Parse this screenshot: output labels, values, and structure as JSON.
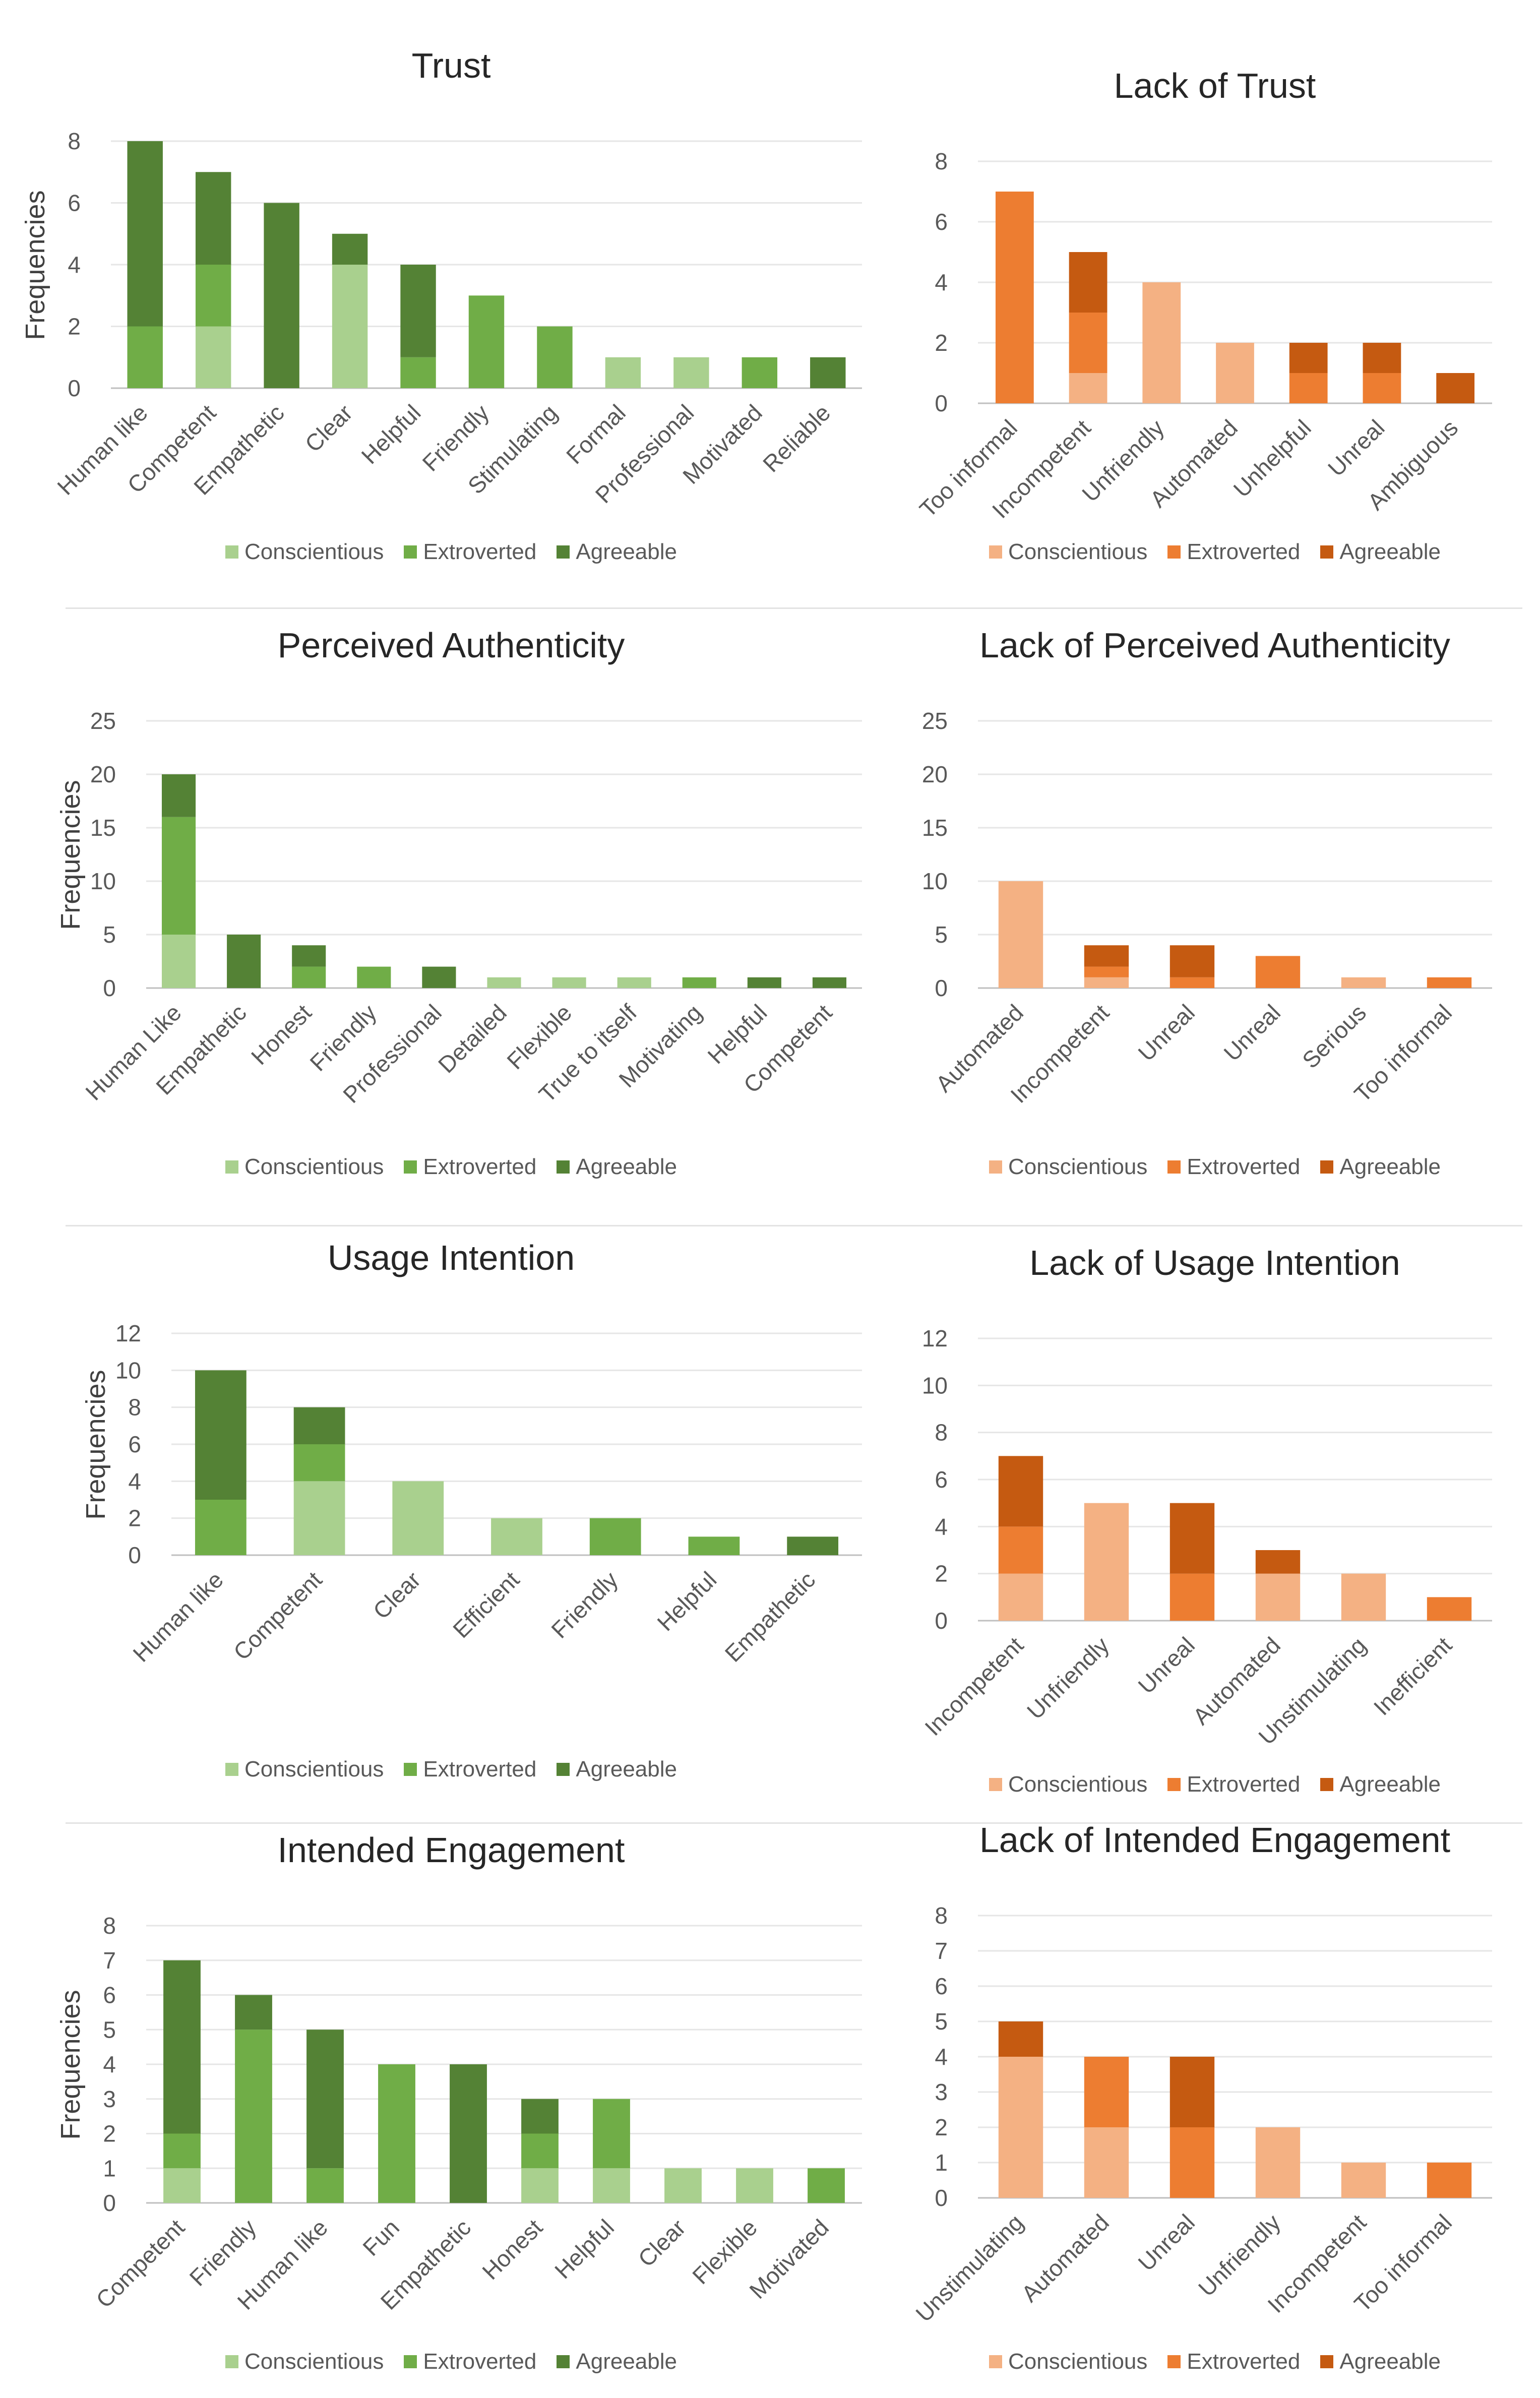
{
  "chart_data": [
    {
      "type": "bar",
      "stacked": true,
      "title": "Trust",
      "ylabel": "Frequencies",
      "ylim": [
        0,
        8
      ],
      "yticks": [
        0,
        2,
        4,
        6,
        8
      ],
      "categories": [
        "Human like",
        "Competent",
        "Empathetic",
        "Clear",
        "Helpful",
        "Friendly",
        "Stimulating",
        "Formal",
        "Professional",
        "Motivated",
        "Reliable"
      ],
      "series": [
        {
          "name": "Conscientious",
          "color": "#a9d08e",
          "values": [
            0,
            2,
            0,
            4,
            0,
            0,
            0,
            1,
            1,
            0,
            0
          ]
        },
        {
          "name": "Extroverted",
          "color": "#70ad47",
          "values": [
            2,
            2,
            0,
            0,
            1,
            3,
            2,
            0,
            0,
            1,
            0
          ]
        },
        {
          "name": "Agreeable",
          "color": "#548235",
          "values": [
            6,
            3,
            6,
            1,
            3,
            0,
            0,
            0,
            0,
            0,
            1
          ]
        }
      ],
      "legend_position": "bottom",
      "grid": true
    },
    {
      "type": "bar",
      "stacked": true,
      "title": "Lack of Trust",
      "ylabel": "",
      "ylim": [
        0,
        8
      ],
      "yticks": [
        0,
        2,
        4,
        6,
        8
      ],
      "categories": [
        "Too informal",
        "Incompetent",
        "Unfriendly",
        "Automated",
        "Unhelpful",
        "Unreal",
        "Ambiguous"
      ],
      "series": [
        {
          "name": "Conscientious",
          "color": "#f4b183",
          "values": [
            0,
            1,
            4,
            2,
            0,
            0,
            0
          ]
        },
        {
          "name": "Extroverted",
          "color": "#ed7d31",
          "values": [
            7,
            2,
            0,
            0,
            1,
            1,
            0
          ]
        },
        {
          "name": "Agreeable",
          "color": "#c55a11",
          "values": [
            0,
            2,
            0,
            0,
            1,
            1,
            1
          ]
        }
      ],
      "legend_position": "bottom",
      "grid": true
    },
    {
      "type": "bar",
      "stacked": true,
      "title": "Perceived Authenticity",
      "ylabel": "Frequencies",
      "ylim": [
        0,
        25
      ],
      "yticks": [
        0,
        5,
        10,
        15,
        20,
        25
      ],
      "categories": [
        "Human Like",
        "Empathetic",
        "Honest",
        "Friendly",
        "Professional",
        "Detailed",
        "Flexible",
        "True to itself",
        "Motivating",
        "Helpful",
        "Competent"
      ],
      "series": [
        {
          "name": "Conscientious",
          "color": "#a9d08e",
          "values": [
            5,
            0,
            0,
            0,
            0,
            1,
            1,
            1,
            0,
            0,
            0
          ]
        },
        {
          "name": "Extroverted",
          "color": "#70ad47",
          "values": [
            11,
            0,
            2,
            2,
            0,
            0,
            0,
            0,
            1,
            0,
            0
          ]
        },
        {
          "name": "Agreeable",
          "color": "#548235",
          "values": [
            4,
            5,
            2,
            0,
            2,
            0,
            0,
            0,
            0,
            1,
            1
          ]
        }
      ],
      "legend_position": "bottom",
      "grid": true
    },
    {
      "type": "bar",
      "stacked": true,
      "title": "Lack of Perceived Authenticity",
      "ylabel": "",
      "ylim": [
        0,
        25
      ],
      "yticks": [
        0,
        5,
        10,
        15,
        20,
        25
      ],
      "categories": [
        "Automated",
        "Incompetent",
        "Unreal",
        "Unreal",
        "Serious",
        "Too informal"
      ],
      "series": [
        {
          "name": "Conscientious",
          "color": "#f4b183",
          "values": [
            10,
            1,
            0,
            0,
            1,
            0
          ]
        },
        {
          "name": "Extroverted",
          "color": "#ed7d31",
          "values": [
            0,
            1,
            1,
            3,
            0,
            1
          ]
        },
        {
          "name": "Agreeable",
          "color": "#c55a11",
          "values": [
            0,
            2,
            3,
            0,
            0,
            0
          ]
        }
      ],
      "legend_position": "bottom",
      "grid": true
    },
    {
      "type": "bar",
      "stacked": true,
      "title": "Usage Intention",
      "ylabel": "Frequencies",
      "ylim": [
        0,
        12
      ],
      "yticks": [
        0,
        2,
        4,
        6,
        8,
        10,
        12
      ],
      "categories": [
        "Human like",
        "Competent",
        "Clear",
        "Efficient",
        "Friendly",
        "Helpful",
        "Empathetic"
      ],
      "series": [
        {
          "name": "Conscientious",
          "color": "#a9d08e",
          "values": [
            0,
            4,
            4,
            2,
            0,
            0,
            0
          ]
        },
        {
          "name": "Extroverted",
          "color": "#70ad47",
          "values": [
            3,
            2,
            0,
            0,
            2,
            1,
            0
          ]
        },
        {
          "name": "Agreeable",
          "color": "#548235",
          "values": [
            7,
            2,
            0,
            0,
            0,
            0,
            1
          ]
        }
      ],
      "legend_position": "bottom",
      "grid": true
    },
    {
      "type": "bar",
      "stacked": true,
      "title": "Lack of Usage Intention",
      "ylabel": "",
      "ylim": [
        0,
        12
      ],
      "yticks": [
        0,
        2,
        4,
        6,
        8,
        10,
        12
      ],
      "categories": [
        "Incompetent",
        "Unfriendly",
        "Unreal",
        "Automated",
        "Unstimulating",
        "Inefficient"
      ],
      "series": [
        {
          "name": "Conscientious",
          "color": "#f4b183",
          "values": [
            2,
            5,
            0,
            2,
            2,
            0
          ]
        },
        {
          "name": "Extroverted",
          "color": "#ed7d31",
          "values": [
            2,
            0,
            2,
            0,
            0,
            1
          ]
        },
        {
          "name": "Agreeable",
          "color": "#c55a11",
          "values": [
            3,
            0,
            3,
            1,
            0,
            0
          ]
        }
      ],
      "legend_position": "bottom",
      "grid": true
    },
    {
      "type": "bar",
      "stacked": true,
      "title": "Intended Engagement",
      "ylabel": "Frequencies",
      "ylim": [
        0,
        8
      ],
      "yticks": [
        0,
        1,
        2,
        3,
        4,
        5,
        6,
        7,
        8
      ],
      "categories": [
        "Competent",
        "Friendly",
        "Human like",
        "Fun",
        "Empathetic",
        "Honest",
        "Helpful",
        "Clear",
        "Flexible",
        "Motivated"
      ],
      "series": [
        {
          "name": "Conscientious",
          "color": "#a9d08e",
          "values": [
            1,
            0,
            0,
            0,
            0,
            1,
            1,
            1,
            1,
            0
          ]
        },
        {
          "name": "Extroverted",
          "color": "#70ad47",
          "values": [
            1,
            5,
            1,
            4,
            0,
            1,
            2,
            0,
            0,
            1
          ]
        },
        {
          "name": "Agreeable",
          "color": "#548235",
          "values": [
            5,
            1,
            4,
            0,
            4,
            1,
            0,
            0,
            0,
            0
          ]
        }
      ],
      "legend_position": "bottom",
      "grid": true
    },
    {
      "type": "bar",
      "stacked": true,
      "title": "Lack of Intended Engagement",
      "ylabel": "",
      "ylim": [
        0,
        8
      ],
      "yticks": [
        0,
        1,
        2,
        3,
        4,
        5,
        6,
        7,
        8
      ],
      "categories": [
        "Unstimulating",
        "Automated",
        "Unreal",
        "Unfriendly",
        "Incompetent",
        "Too informal"
      ],
      "series": [
        {
          "name": "Conscientious",
          "color": "#f4b183",
          "values": [
            4,
            2,
            0,
            2,
            1,
            0
          ]
        },
        {
          "name": "Extroverted",
          "color": "#ed7d31",
          "values": [
            0,
            2,
            2,
            0,
            0,
            1
          ]
        },
        {
          "name": "Agreeable",
          "color": "#c55a11",
          "values": [
            1,
            0,
            2,
            0,
            0,
            0
          ]
        }
      ],
      "legend_position": "bottom",
      "grid": true
    }
  ]
}
